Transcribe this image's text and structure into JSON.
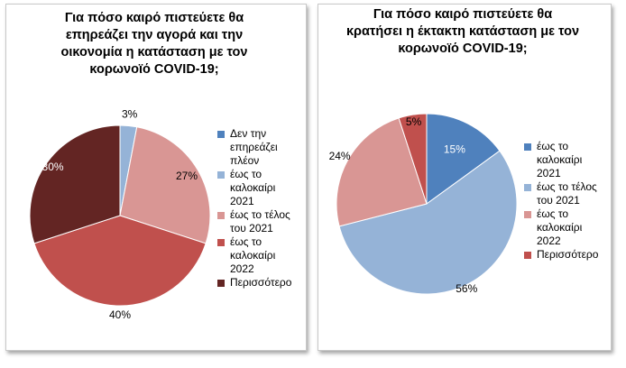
{
  "chart_data": [
    {
      "type": "pie",
      "title": "Για πόσο καιρό πιστεύετε θα επηρεάζει την αγορά και την οικονομία η κατάσταση με τον κορωνοϊό COVID-19;",
      "categories": [
        "Δεν την επηρεάζει πλέον",
        "έως το καλοκαίρι 2021",
        "έως το τέλος του 2021",
        "έως το καλοκαίρι 2022",
        "Περισσότερο"
      ],
      "legend_lines": [
        "Δεν την\nεπηρεάζει\nπλέον",
        "έως το\nκαλοκαίρι\n2021",
        "έως το τέλος\nτου 2021",
        "έως το\nκαλοκαίρι\n2022",
        "Περισσότερο"
      ],
      "values": [
        0,
        3,
        27,
        40,
        30
      ],
      "data_labels": [
        "",
        "3%",
        "27%",
        "40%",
        "30%"
      ],
      "colors": [
        "#4f81bd",
        "#95b3d7",
        "#d99694",
        "#c0504d",
        "#632523"
      ],
      "legend_position": "right"
    },
    {
      "type": "pie",
      "title": "Για πόσο καιρό πιστεύετε θα κρατήσει η έκτακτη κατάσταση με τον κορωνοϊό COVID-19;",
      "categories": [
        "έως το καλοκαίρι 2021",
        "έως το τέλος του 2021",
        "έως το καλοκαίρι 2022",
        "Περισσότερο"
      ],
      "legend_lines": [
        "έως το\nκαλοκαίρι\n2021",
        "έως το τέλος\nτου 2021",
        "έως το\nκαλοκαίρι\n2022",
        "Περισσότερο"
      ],
      "values": [
        15,
        56,
        24,
        5
      ],
      "data_labels": [
        "15%",
        "56%",
        "24%",
        "5%"
      ],
      "colors": [
        "#4f81bd",
        "#95b3d7",
        "#d99694",
        "#c0504d"
      ],
      "legend_position": "right"
    }
  ]
}
